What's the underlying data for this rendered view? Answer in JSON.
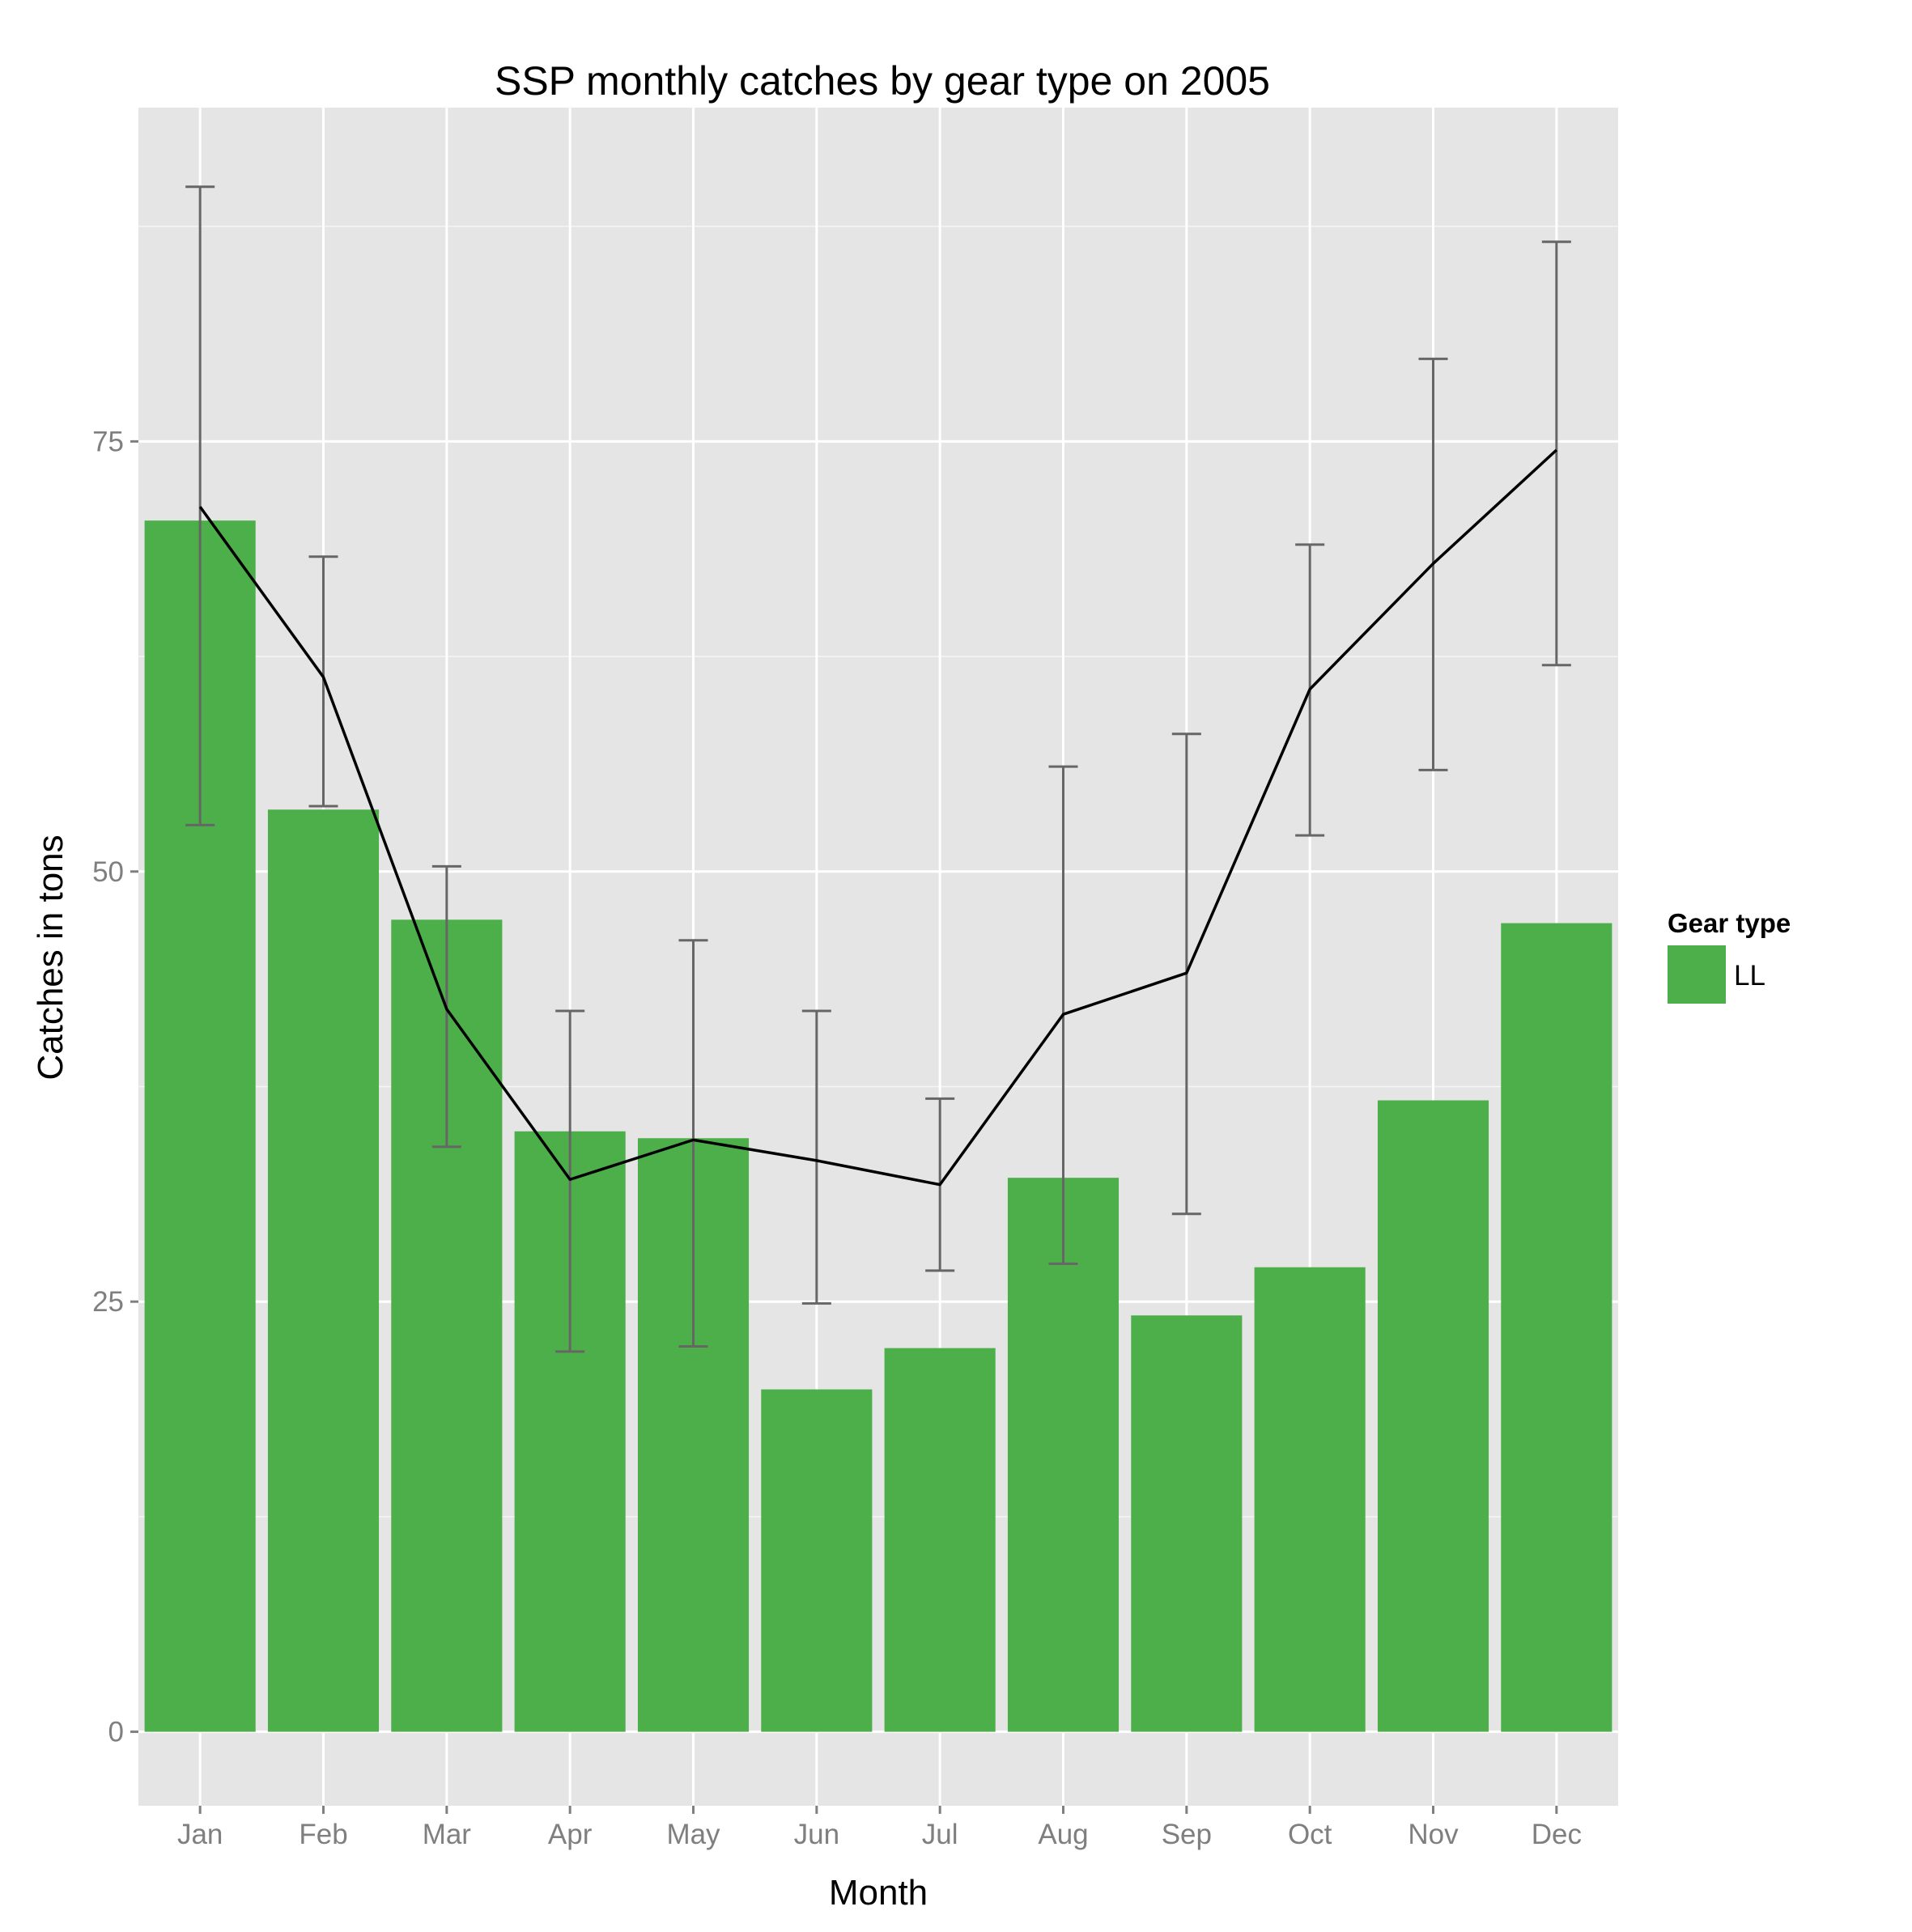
{
  "chart_data": {
    "type": "bar",
    "title": "SSP monthly catches by gear type on 2005",
    "xlabel": "Month",
    "ylabel": "Catches in tons",
    "categories": [
      "Jan",
      "Feb",
      "Mar",
      "Apr",
      "May",
      "Jun",
      "Jul",
      "Aug",
      "Sep",
      "Oct",
      "Nov",
      "Dec"
    ],
    "series": [
      {
        "name": "LL",
        "values": [
          70.4,
          53.6,
          47.2,
          34.9,
          34.5,
          19.9,
          22.3,
          32.2,
          24.2,
          27.0,
          36.7,
          47.0
        ]
      }
    ],
    "line": {
      "values": [
        71.2,
        61.3,
        42.0,
        32.1,
        34.4,
        33.2,
        31.8,
        41.7,
        44.1,
        60.6,
        67.9,
        74.5
      ]
    },
    "error_bars": {
      "lower": [
        52.7,
        53.8,
        34.0,
        22.1,
        22.4,
        24.9,
        26.8,
        27.2,
        30.1,
        52.1,
        55.9,
        62.0
      ],
      "upper": [
        89.8,
        68.3,
        50.3,
        41.9,
        46.0,
        41.9,
        36.8,
        56.1,
        58.0,
        69.0,
        79.8,
        86.6
      ]
    },
    "yticks": [
      0,
      25,
      50,
      75
    ],
    "ylim": [
      -4.3,
      94.4
    ],
    "grid": true,
    "legend": {
      "title": "Gear type",
      "placement": "right",
      "entries": [
        "LL"
      ]
    },
    "colors": {
      "bar": "#4daf4a",
      "line": "#000000",
      "error_bar": "#666666",
      "panel": "#e5e5e5",
      "grid": "#ffffff"
    }
  }
}
